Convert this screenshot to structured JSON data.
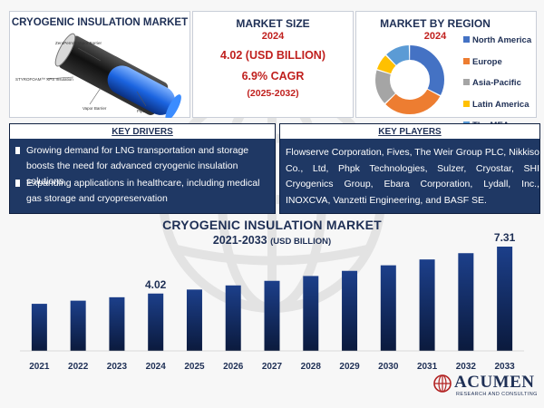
{
  "colors": {
    "navy": "#1f3864",
    "title_navy": "#1e2f55",
    "red": "#c0201e",
    "bar_top": "#1c3f8a",
    "bar_bottom": "#0b1a3d"
  },
  "market_image": {
    "title": "CRYOGENIC INSULATION MARKET",
    "callouts": [
      "ZeroPerm® Vapor Barrier",
      "STYROFOAM™ XPS Insulation",
      "Vapor Barrier",
      "Pipe"
    ]
  },
  "market_size": {
    "title": "MARKET SIZE",
    "year": "2024",
    "value": "4.02 (USD BILLION)",
    "cagr": "6.9% CAGR",
    "period": "(2025-2032)"
  },
  "region": {
    "title": "MARKET BY REGION",
    "year": "2024",
    "legend": [
      {
        "label": "North America",
        "color": "#4472c4"
      },
      {
        "label": "Europe",
        "color": "#ed7d31"
      },
      {
        "label": "Asia-Pacific",
        "color": "#a5a5a5"
      },
      {
        "label": "Latin America",
        "color": "#ffc000"
      },
      {
        "label": "The MEA",
        "color": "#5b9bd5"
      }
    ],
    "shares": [
      33,
      30,
      17,
      8,
      12
    ]
  },
  "key_drivers": {
    "title": "KEY DRIVERS",
    "items": [
      "Growing demand for LNG transportation and storage boosts the need for advanced cryogenic insulation solutions",
      "Expanding applications in healthcare, including medical gas storage and cryopreservation"
    ]
  },
  "key_players": {
    "title": "KEY PLAYERS",
    "text": "Flowserve Corporation, Fives, The Weir Group PLC, Nikkiso Co., Ltd, Phpk Technologies, Sulzer, Cryostar, SHI Cryogenics Group, Ebara Corporation, Lydall, Inc., INOXCVA, Vanzetti Engineering, and BASF SE."
  },
  "chart_data": {
    "type": "bar",
    "title": "CRYOGENIC INSULATION MARKET",
    "subtitle": "2021-2033",
    "unit": "(USD BILLION)",
    "categories": [
      "2021",
      "2022",
      "2023",
      "2024",
      "2025",
      "2026",
      "2027",
      "2028",
      "2029",
      "2030",
      "2031",
      "2032",
      "2033"
    ],
    "values": [
      3.3,
      3.52,
      3.76,
      4.02,
      4.3,
      4.59,
      4.91,
      5.25,
      5.61,
      6.0,
      6.41,
      6.85,
      7.31
    ],
    "data_labels": {
      "3": "4.02",
      "12": "7.31"
    },
    "ylim": [
      0,
      7.31
    ],
    "grid": false
  },
  "brand": {
    "name": "ACUMEN",
    "tagline": "RESEARCH AND CONSULTING"
  }
}
